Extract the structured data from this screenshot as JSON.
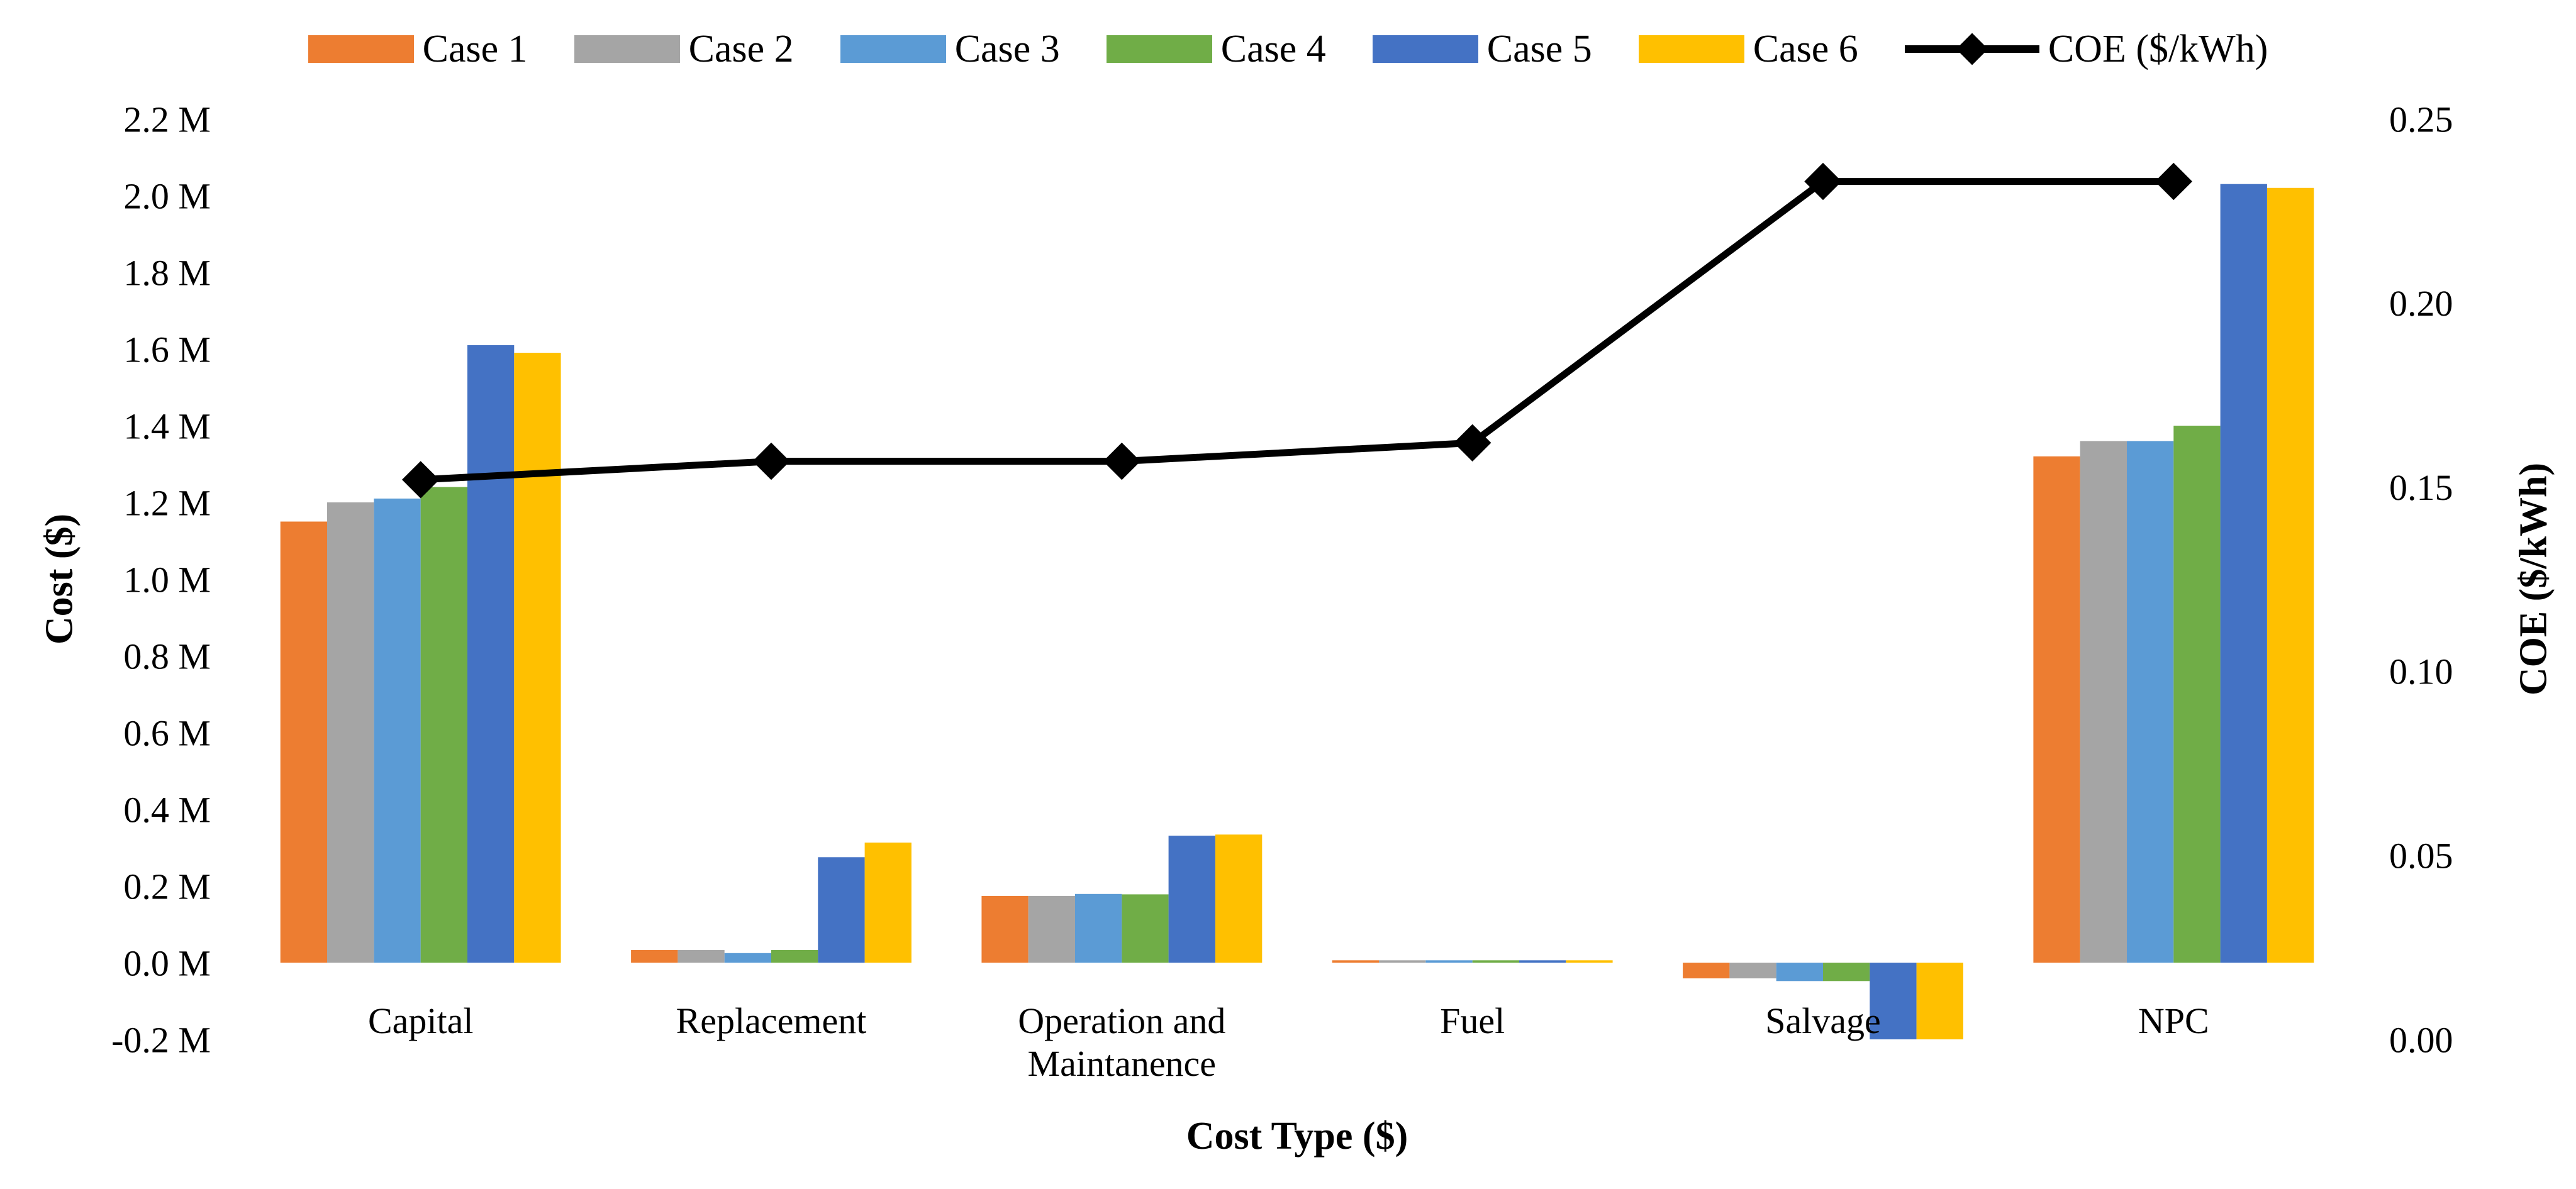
{
  "chart_data": {
    "type": "bar+line",
    "title": "",
    "xlabel": "Cost Type ($)",
    "ylabel_left": "Cost ($)",
    "ylabel_right": "COE ($/kWh)",
    "legend_position": "top",
    "grid": false,
    "categories": [
      "Capital",
      "Replacement",
      "Operation and Maintanence",
      "Fuel",
      "Salvage",
      "NPC"
    ],
    "category_label_lines": [
      [
        "Capital"
      ],
      [
        "Replacement"
      ],
      [
        "Operation and",
        "Maintanence"
      ],
      [
        "Fuel"
      ],
      [
        "Salvage"
      ],
      [
        "NPC"
      ]
    ],
    "y_left": {
      "min": -0.2,
      "max": 2.2,
      "step": 0.2,
      "unit": "M",
      "tick_labels": [
        "2.2 M",
        "2.0 M",
        "1.8 M",
        "1.6 M",
        "1.4 M",
        "1.2 M",
        "1.0 M",
        "0.8 M",
        "0.6 M",
        "0.4 M",
        "0.2 M",
        "0.0 M",
        "-0.2 M"
      ]
    },
    "y_right": {
      "min": 0.0,
      "max": 0.25,
      "step": 0.05,
      "tick_labels": [
        "0.25",
        "0.20",
        "0.15",
        "0.10",
        "0.05",
        "0.00"
      ]
    },
    "series": [
      {
        "name": "Case 1",
        "color": "#ED7D31",
        "values": [
          1.15,
          0.033,
          0.174,
          0.006,
          -0.041,
          1.32
        ]
      },
      {
        "name": "Case 2",
        "color": "#A5A5A5",
        "values": [
          1.2,
          0.033,
          0.174,
          0.006,
          -0.041,
          1.36
        ]
      },
      {
        "name": "Case 3",
        "color": "#5B9BD5",
        "values": [
          1.21,
          0.025,
          0.179,
          0.006,
          -0.048,
          1.36
        ]
      },
      {
        "name": "Case 4",
        "color": "#70AD47",
        "values": [
          1.24,
          0.033,
          0.178,
          0.006,
          -0.048,
          1.4
        ]
      },
      {
        "name": "Case 5",
        "color": "#4472C4",
        "values": [
          1.61,
          0.275,
          0.331,
          0.006,
          -0.2,
          2.03
        ]
      },
      {
        "name": "Case 6",
        "color": "#FFC000",
        "values": [
          1.59,
          0.313,
          0.334,
          0.006,
          -0.21,
          2.02
        ]
      }
    ],
    "line_series": {
      "name": "COE ($/kWh)",
      "color": "#000000",
      "marker": "diamond",
      "values": [
        0.152,
        0.157,
        0.157,
        0.162,
        0.233,
        0.233
      ]
    }
  }
}
